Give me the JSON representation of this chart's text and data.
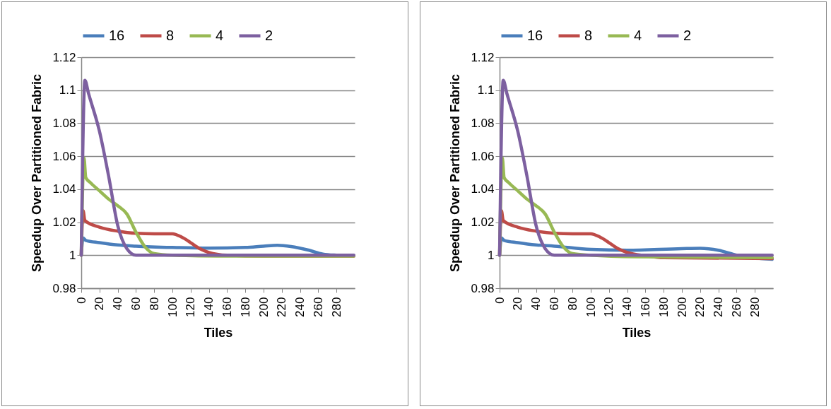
{
  "chart_data": [
    {
      "type": "line",
      "xlabel": "Tiles",
      "ylabel": "Speedup Over Partitioned Fabric",
      "legend": "top",
      "grid": "y",
      "xlim": [
        0,
        300
      ],
      "xticks": [
        0,
        20,
        40,
        60,
        80,
        100,
        120,
        140,
        160,
        180,
        200,
        220,
        240,
        260,
        280
      ],
      "ylim": [
        0.98,
        1.12
      ],
      "yticks": [
        0.98,
        1,
        1.02,
        1.04,
        1.06,
        1.08,
        1.1,
        1.12
      ],
      "series": [
        {
          "name": "16",
          "color": "#4a7ebb",
          "x": [
            0,
            2,
            5,
            20,
            40,
            60,
            100,
            140,
            180,
            200,
            215,
            230,
            250,
            265,
            280,
            299
          ],
          "values": [
            1.0,
            1.0105,
            1.009,
            1.0076,
            1.0062,
            1.0055,
            1.0047,
            1.0043,
            1.0047,
            1.0055,
            1.006,
            1.0053,
            1.003,
            1.0007,
            1.0,
            0.9997
          ]
        },
        {
          "name": "8",
          "color": "#be4b48",
          "x": [
            0,
            2,
            4,
            20,
            40,
            60,
            80,
            100,
            110,
            120,
            130,
            140,
            160,
            200,
            299
          ],
          "values": [
            1.0,
            1.027,
            1.021,
            1.017,
            1.0146,
            1.0133,
            1.013,
            1.013,
            1.011,
            1.0076,
            1.004,
            1.0017,
            1.0,
            0.9995,
            0.9995
          ]
        },
        {
          "name": "4",
          "color": "#98b954",
          "x": [
            0,
            3,
            5,
            10,
            20,
            30,
            40,
            50,
            60,
            70,
            80,
            100,
            150,
            299
          ],
          "values": [
            1.0,
            1.059,
            1.047,
            1.044,
            1.039,
            1.034,
            1.03,
            1.025,
            1.014,
            1.005,
            1.001,
            1.0,
            0.9995,
            0.9995
          ]
        },
        {
          "name": "2",
          "color": "#7d60a0",
          "x": [
            0,
            4,
            8,
            20,
            30,
            40,
            50,
            60,
            100,
            299
          ],
          "values": [
            1.0,
            1.106,
            1.098,
            1.075,
            1.048,
            1.018,
            1.004,
            1.0,
            1.0,
            1.0
          ]
        }
      ]
    },
    {
      "type": "line",
      "xlabel": "Tiles",
      "ylabel": "Speedup Over Partitioned Fabric",
      "legend": "top",
      "grid": "y",
      "xlim": [
        0,
        300
      ],
      "xticks": [
        0,
        20,
        40,
        60,
        80,
        100,
        120,
        140,
        160,
        180,
        200,
        220,
        240,
        260,
        280
      ],
      "ylim": [
        0.98,
        1.12
      ],
      "yticks": [
        0.98,
        1,
        1.02,
        1.04,
        1.06,
        1.08,
        1.1,
        1.12
      ],
      "series": [
        {
          "name": "16",
          "color": "#4a7ebb",
          "x": [
            0,
            2,
            5,
            20,
            40,
            60,
            100,
            140,
            200,
            220,
            240,
            260,
            299
          ],
          "values": [
            1.0,
            1.0105,
            1.009,
            1.0076,
            1.0062,
            1.0055,
            1.0035,
            1.003,
            1.004,
            1.0042,
            1.003,
            1.0,
            0.9975
          ]
        },
        {
          "name": "8",
          "color": "#be4b48",
          "x": [
            0,
            2,
            4,
            20,
            40,
            60,
            80,
            100,
            110,
            120,
            130,
            140,
            160,
            180,
            299
          ],
          "values": [
            1.0,
            1.027,
            1.021,
            1.017,
            1.0146,
            1.0133,
            1.013,
            1.013,
            1.011,
            1.0076,
            1.004,
            1.0017,
            0.9997,
            0.9985,
            0.998
          ]
        },
        {
          "name": "4",
          "color": "#98b954",
          "x": [
            0,
            3,
            5,
            10,
            20,
            30,
            40,
            50,
            60,
            70,
            80,
            100,
            150,
            299
          ],
          "values": [
            1.0,
            1.059,
            1.047,
            1.044,
            1.039,
            1.034,
            1.03,
            1.025,
            1.014,
            1.005,
            1.001,
            1.0,
            0.999,
            0.9985
          ]
        },
        {
          "name": "2",
          "color": "#7d60a0",
          "x": [
            0,
            4,
            8,
            20,
            30,
            40,
            50,
            60,
            100,
            299
          ],
          "values": [
            1.0,
            1.106,
            1.098,
            1.075,
            1.048,
            1.018,
            1.004,
            1.0,
            1.0,
            1.0
          ]
        }
      ]
    }
  ]
}
